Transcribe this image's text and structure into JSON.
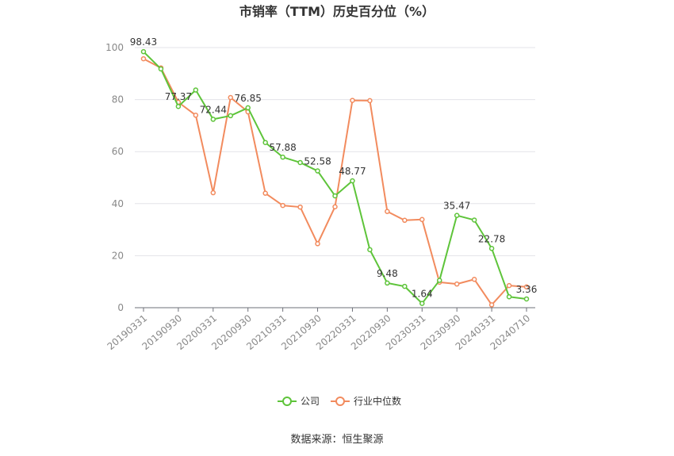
{
  "chart_data": {
    "type": "line",
    "title": "市销率（TTM）历史百分位（%）",
    "source": "数据来源：恒生聚源",
    "ylim": [
      0,
      100
    ],
    "yticks": [
      "0",
      "20",
      "40",
      "60",
      "80",
      "100"
    ],
    "x_tick_labels": [
      "20190331",
      "20190930",
      "20200331",
      "20200930",
      "20210331",
      "20210930",
      "20220331",
      "20220930",
      "20230331",
      "20230930",
      "20240331",
      "20240710"
    ],
    "grid": "horizontal",
    "legend_position": "bottom",
    "series": [
      {
        "name": "公司",
        "color": "#5ec43a",
        "values": [
          98.43,
          91.8,
          77.37,
          83.7,
          72.44,
          73.8,
          76.85,
          63.5,
          57.88,
          55.8,
          52.58,
          43.0,
          48.77,
          22.3,
          9.48,
          8.2,
          1.64,
          10.5,
          35.47,
          33.7,
          22.78,
          4.2,
          3.36
        ],
        "labels": [
          "98.43",
          "",
          "77.37",
          "",
          "72.44",
          "",
          "76.85",
          "",
          "57.88",
          "",
          "52.58",
          "",
          "48.77",
          "",
          "9.48",
          "",
          "1.64",
          "",
          "35.47",
          "",
          "22.78",
          "",
          "3.36"
        ]
      },
      {
        "name": "行业中位数",
        "color": "#f28b5e",
        "values": [
          95.7,
          92.2,
          79.0,
          74.0,
          44.2,
          80.8,
          75.3,
          44.0,
          39.3,
          38.7,
          24.6,
          38.8,
          79.7,
          79.6,
          37.0,
          33.6,
          33.9,
          9.8,
          9.1,
          10.9,
          1.1,
          8.5,
          8.0
        ]
      }
    ]
  }
}
